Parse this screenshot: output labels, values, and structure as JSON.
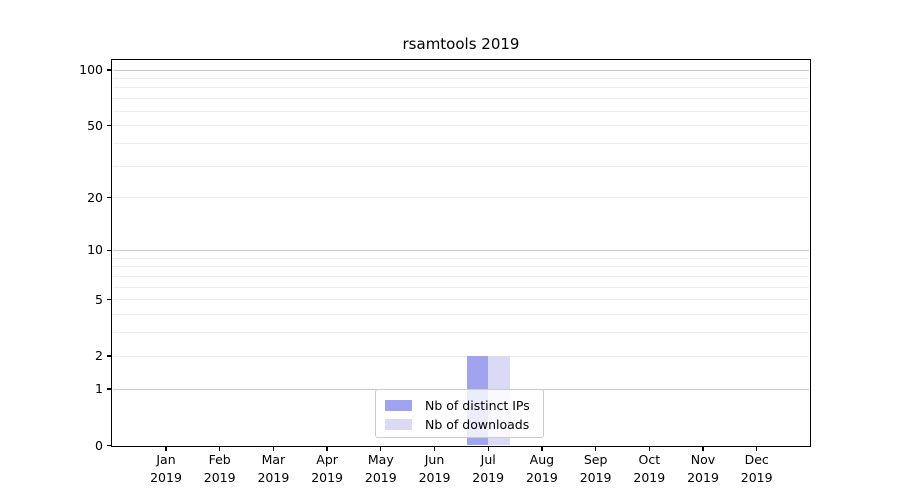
{
  "chart_data": {
    "type": "bar",
    "title": "rsamtools 2019",
    "categories": [
      {
        "month": "Jan",
        "year": "2019"
      },
      {
        "month": "Feb",
        "year": "2019"
      },
      {
        "month": "Mar",
        "year": "2019"
      },
      {
        "month": "Apr",
        "year": "2019"
      },
      {
        "month": "May",
        "year": "2019"
      },
      {
        "month": "Jun",
        "year": "2019"
      },
      {
        "month": "Jul",
        "year": "2019"
      },
      {
        "month": "Aug",
        "year": "2019"
      },
      {
        "month": "Sep",
        "year": "2019"
      },
      {
        "month": "Oct",
        "year": "2019"
      },
      {
        "month": "Nov",
        "year": "2019"
      },
      {
        "month": "Dec",
        "year": "2019"
      }
    ],
    "series": [
      {
        "name": "Nb of distinct IPs",
        "color": "#a2a3ee",
        "values": [
          0,
          0,
          0,
          0,
          0,
          0,
          2,
          0,
          0,
          0,
          0,
          0
        ]
      },
      {
        "name": "Nb of downloads",
        "color": "#dadaf7",
        "values": [
          0,
          0,
          0,
          0,
          0,
          0,
          2,
          0,
          0,
          0,
          0,
          0
        ]
      }
    ],
    "y_scale": "log1p",
    "y_ticks": [
      0,
      1,
      2,
      5,
      10,
      20,
      50,
      100
    ],
    "ylim": [
      0,
      113
    ],
    "grid": true,
    "grid_major_values": [
      1,
      10,
      100
    ],
    "grid_minor_values": [
      2,
      3,
      4,
      5,
      6,
      7,
      8,
      9,
      20,
      30,
      40,
      50,
      60,
      70,
      80,
      90
    ],
    "legend_position": "lower center",
    "colors": {
      "grid_major": "#c9c9c9",
      "grid_minor": "#ededed",
      "spine": "#000000",
      "legend_border": "#cccccc"
    }
  }
}
